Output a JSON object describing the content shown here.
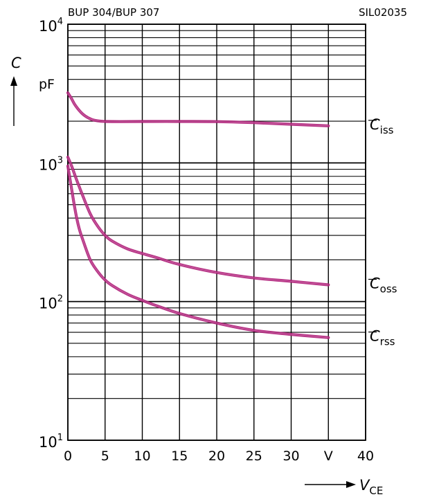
{
  "header": {
    "left": "BUP 304/BUP 307",
    "right": "SIL02035"
  },
  "chart_data": {
    "type": "line",
    "x_scale": "linear",
    "y_scale": "log",
    "xlim": [
      0,
      40
    ],
    "ylim": [
      10,
      10000
    ],
    "grid": true,
    "x_tick_labels": [
      "0",
      "5",
      "10",
      "15",
      "20",
      "25",
      "30",
      "V",
      "40"
    ],
    "y_tick_labels": [
      {
        "base": "10",
        "exp": "1"
      },
      {
        "base": "10",
        "exp": "2"
      },
      {
        "base": "10",
        "exp": "3"
      },
      {
        "base": "10",
        "exp": "4"
      }
    ],
    "y_axis": {
      "symbol": "C",
      "unit": "pF"
    },
    "x_axis": {
      "symbol": "V",
      "subscript": "CE"
    },
    "series_color": "#b0207a",
    "series": [
      {
        "label": {
          "symbol": "C",
          "subscript": "iss"
        },
        "x": [
          0,
          0.5,
          1,
          2,
          3,
          4,
          5,
          7,
          10,
          15,
          20,
          25,
          30,
          35
        ],
        "y": [
          3200,
          2900,
          2600,
          2250,
          2080,
          2010,
          1990,
          1985,
          1990,
          1990,
          1985,
          1950,
          1900,
          1850
        ]
      },
      {
        "label": {
          "symbol": "C",
          "subscript": "oss"
        },
        "x": [
          0,
          0.5,
          1,
          1.5,
          2,
          3,
          4,
          5,
          6,
          8,
          10,
          12,
          15,
          20,
          25,
          30,
          35
        ],
        "y": [
          1100,
          950,
          800,
          680,
          580,
          430,
          350,
          300,
          272,
          240,
          222,
          207,
          185,
          162,
          148,
          140,
          132
        ]
      },
      {
        "label": {
          "symbol": "C",
          "subscript": "rss"
        },
        "x": [
          0,
          0.5,
          1,
          1.5,
          2,
          3,
          4,
          5,
          6,
          8,
          10,
          12,
          15,
          20,
          25,
          30,
          35
        ],
        "y": [
          950,
          650,
          450,
          340,
          280,
          200,
          165,
          143,
          130,
          113,
          102,
          93,
          82,
          70,
          62,
          58,
          55
        ]
      }
    ]
  }
}
